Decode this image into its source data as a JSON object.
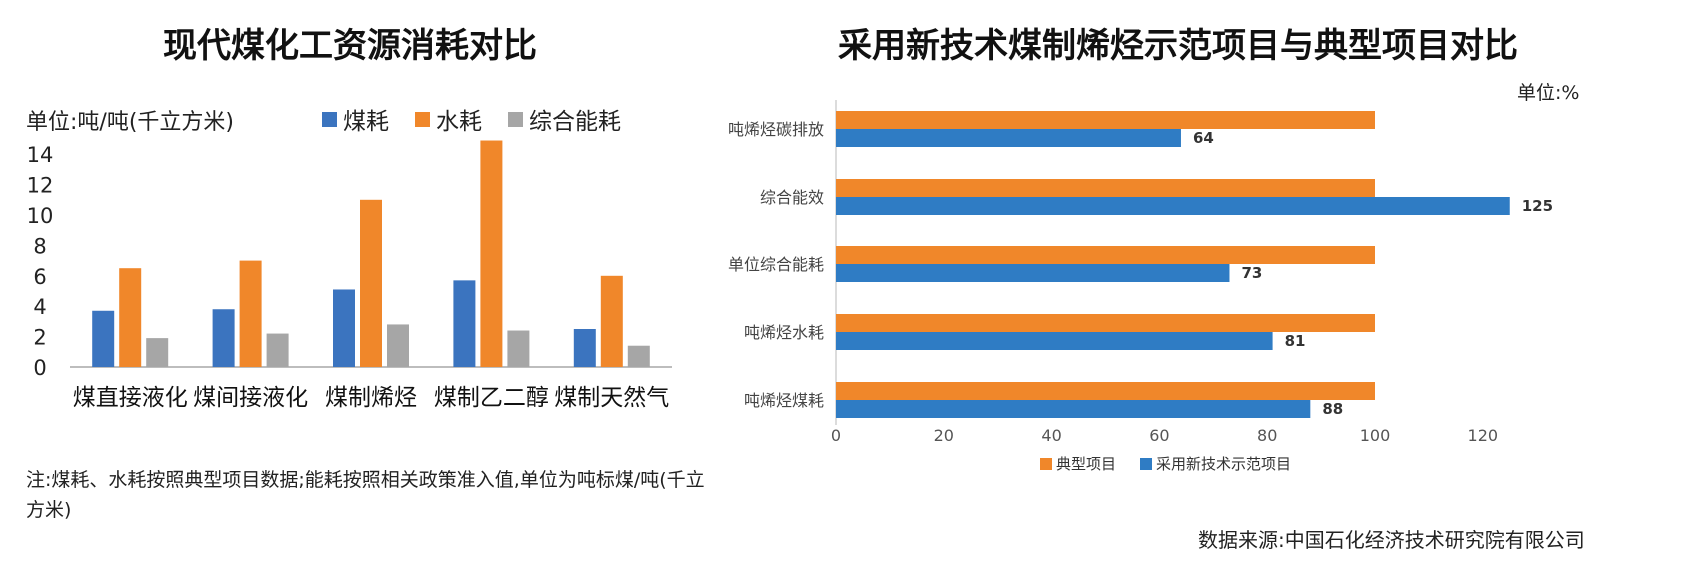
{
  "left": {
    "title": "现代煤化工资源消耗对比",
    "unit": "单位:吨/吨(千立方米)",
    "note": "注:煤耗、水耗按照典型项目数据;能耗按照相关政策准入值,单位为吨标煤/吨(千立方米)"
  },
  "right": {
    "title": "采用新技术煤制烯烃示范项目与典型项目对比",
    "unit": "单位:%",
    "source": "数据来源:中国石化经济技术研究院有限公司"
  },
  "chart_data": [
    {
      "type": "bar",
      "title": "现代煤化工资源消耗对比",
      "categories": [
        "煤直接液化",
        "煤间接液化",
        "煤制烯烃",
        "煤制乙二醇",
        "煤制天然气"
      ],
      "series": [
        {
          "name": "煤耗",
          "color": "#3b74bf",
          "values": [
            3.7,
            3.8,
            5.1,
            5.7,
            2.5
          ]
        },
        {
          "name": "水耗",
          "color": "#f0872a",
          "values": [
            6.5,
            7.0,
            11.0,
            14.9,
            6.0
          ]
        },
        {
          "name": "综合能耗",
          "color": "#a6a6a6",
          "values": [
            1.9,
            2.2,
            2.8,
            2.4,
            1.4
          ]
        }
      ],
      "yticks": [
        "0",
        "2",
        "4",
        "6",
        "8",
        "10",
        "12",
        "14"
      ],
      "ylim": [
        0,
        15
      ],
      "legend": "top"
    },
    {
      "type": "bar",
      "orientation": "horizontal",
      "title": "采用新技术煤制烯烃示范项目与典型项目对比",
      "categories": [
        "吨烯烃碳排放",
        "综合能效",
        "单位综合能耗",
        "吨烯烃水耗",
        "吨烯烃煤耗"
      ],
      "series": [
        {
          "name": "典型项目",
          "color": "#f0872a",
          "values": [
            100,
            100,
            100,
            100,
            100
          ]
        },
        {
          "name": "采用新技术示范项目",
          "color": "#2f7cc4",
          "values": [
            64,
            125,
            73,
            81,
            88
          ],
          "labels": [
            "64",
            "125",
            "73",
            "81",
            "88"
          ]
        }
      ],
      "xticks": [
        "0",
        "20",
        "40",
        "60",
        "80",
        "100",
        "120"
      ],
      "xlim": [
        0,
        130
      ],
      "legend": "bottom"
    }
  ]
}
